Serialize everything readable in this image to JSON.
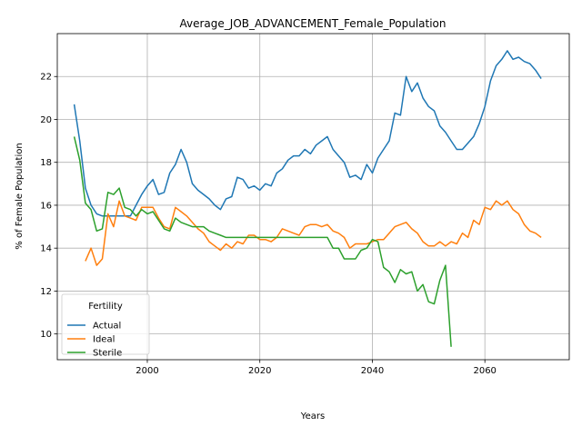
{
  "chart_data": {
    "type": "line",
    "title": "Average_JOB_ADVANCEMENT_Female_Population",
    "xlabel": "Years",
    "ylabel": "% of Female Population",
    "xlim": [
      1984,
      2075
    ],
    "ylim": [
      8.8,
      24.0
    ],
    "xticks": [
      2000,
      2020,
      2040,
      2060
    ],
    "yticks": [
      10,
      12,
      14,
      16,
      18,
      20,
      22
    ],
    "grid": true,
    "legend": {
      "title": "Fertility",
      "position": "lower-left",
      "entries": [
        "Actual",
        "Ideal",
        "Sterile"
      ]
    },
    "series": [
      {
        "name": "Actual",
        "color": "#1f77b4",
        "x": [
          1987,
          1988,
          1989,
          1990,
          1991,
          1992,
          1993,
          1994,
          1995,
          1996,
          1997,
          1998,
          1999,
          2000,
          2001,
          2002,
          2003,
          2004,
          2005,
          2006,
          2007,
          2008,
          2009,
          2010,
          2011,
          2012,
          2013,
          2014,
          2015,
          2016,
          2017,
          2018,
          2019,
          2020,
          2021,
          2022,
          2023,
          2024,
          2025,
          2026,
          2027,
          2028,
          2029,
          2030,
          2031,
          2032,
          2033,
          2034,
          2035,
          2036,
          2037,
          2038,
          2039,
          2040,
          2041,
          2042,
          2043,
          2044,
          2045,
          2046,
          2047,
          2048,
          2049,
          2050,
          2051,
          2052,
          2053,
          2054,
          2055,
          2056,
          2057,
          2058,
          2059,
          2060,
          2061,
          2062,
          2063,
          2064,
          2065,
          2066,
          2067,
          2068,
          2069,
          2070
        ],
        "values": [
          20.7,
          19.0,
          16.8,
          16.0,
          15.6,
          15.5,
          15.5,
          15.5,
          15.5,
          15.5,
          15.5,
          16.0,
          16.5,
          16.9,
          17.2,
          16.5,
          16.6,
          17.5,
          17.9,
          18.6,
          18.0,
          17.0,
          16.7,
          16.5,
          16.3,
          16.0,
          15.8,
          16.3,
          16.4,
          17.3,
          17.2,
          16.8,
          16.9,
          16.7,
          17.0,
          16.9,
          17.5,
          17.7,
          18.1,
          18.3,
          18.3,
          18.6,
          18.4,
          18.8,
          19.0,
          19.2,
          18.6,
          18.3,
          18.0,
          17.3,
          17.4,
          17.2,
          17.9,
          17.5,
          18.2,
          18.6,
          19.0,
          20.3,
          20.2,
          22.0,
          21.3,
          21.7,
          21.0,
          20.6,
          20.4,
          19.7,
          19.4,
          19.0,
          18.6,
          18.6,
          18.9,
          19.2,
          19.8,
          20.6,
          21.8,
          22.5,
          22.8,
          23.2,
          22.8,
          22.9,
          22.7,
          22.6,
          22.3,
          21.9
        ]
      },
      {
        "name": "Ideal",
        "color": "#ff7f0e",
        "x": [
          1989,
          1990,
          1991,
          1992,
          1993,
          1994,
          1995,
          1996,
          1997,
          1998,
          1999,
          2000,
          2001,
          2002,
          2003,
          2004,
          2005,
          2006,
          2007,
          2008,
          2009,
          2010,
          2011,
          2012,
          2013,
          2014,
          2015,
          2016,
          2017,
          2018,
          2019,
          2020,
          2021,
          2022,
          2023,
          2024,
          2025,
          2026,
          2027,
          2028,
          2029,
          2030,
          2031,
          2032,
          2033,
          2034,
          2035,
          2036,
          2037,
          2038,
          2039,
          2040,
          2041,
          2042,
          2043,
          2044,
          2045,
          2046,
          2047,
          2048,
          2049,
          2050,
          2051,
          2052,
          2053,
          2054,
          2055,
          2056,
          2057,
          2058,
          2059,
          2060,
          2061,
          2062,
          2063,
          2064,
          2065,
          2066,
          2067,
          2068,
          2069,
          2070
        ],
        "values": [
          13.4,
          14.0,
          13.2,
          13.5,
          15.6,
          15.0,
          16.2,
          15.5,
          15.4,
          15.3,
          15.9,
          15.9,
          15.9,
          15.4,
          15.0,
          14.9,
          15.9,
          15.7,
          15.5,
          15.2,
          14.9,
          14.7,
          14.3,
          14.1,
          13.9,
          14.2,
          14.0,
          14.3,
          14.2,
          14.6,
          14.6,
          14.4,
          14.4,
          14.3,
          14.5,
          14.9,
          14.8,
          14.7,
          14.6,
          15.0,
          15.1,
          15.1,
          15.0,
          15.1,
          14.8,
          14.7,
          14.5,
          14.0,
          14.2,
          14.2,
          14.2,
          14.3,
          14.4,
          14.4,
          14.7,
          15.0,
          15.1,
          15.2,
          14.9,
          14.7,
          14.3,
          14.1,
          14.1,
          14.3,
          14.1,
          14.3,
          14.2,
          14.7,
          14.5,
          15.3,
          15.1,
          15.9,
          15.8,
          16.2,
          16.0,
          16.2,
          15.8,
          15.6,
          15.1,
          14.8,
          14.7,
          14.5
        ]
      },
      {
        "name": "Sterile",
        "color": "#2ca02c",
        "x": [
          1987,
          1988,
          1989,
          1990,
          1991,
          1992,
          1993,
          1994,
          1995,
          1996,
          1997,
          1998,
          1999,
          2000,
          2001,
          2002,
          2003,
          2004,
          2005,
          2006,
          2007,
          2008,
          2009,
          2010,
          2011,
          2012,
          2013,
          2014,
          2015,
          2016,
          2017,
          2018,
          2019,
          2020,
          2021,
          2022,
          2023,
          2024,
          2025,
          2026,
          2027,
          2028,
          2029,
          2030,
          2031,
          2032,
          2033,
          2034,
          2035,
          2036,
          2037,
          2038,
          2039,
          2040,
          2041,
          2042,
          2043,
          2044,
          2045,
          2046,
          2047,
          2048,
          2049,
          2050,
          2051,
          2052,
          2053,
          2054
        ],
        "values": [
          19.2,
          18.1,
          16.1,
          15.8,
          14.8,
          14.9,
          16.6,
          16.5,
          16.8,
          15.9,
          15.8,
          15.5,
          15.8,
          15.6,
          15.7,
          15.3,
          14.9,
          14.8,
          15.4,
          15.2,
          15.1,
          15.0,
          15.0,
          15.0,
          14.8,
          14.7,
          14.6,
          14.5,
          14.5,
          14.5,
          14.5,
          14.5,
          14.5,
          14.5,
          14.5,
          14.5,
          14.5,
          14.5,
          14.5,
          14.5,
          14.5,
          14.5,
          14.5,
          14.5,
          14.5,
          14.5,
          14.0,
          14.0,
          13.5,
          13.5,
          13.5,
          13.9,
          14.0,
          14.4,
          14.3,
          13.1,
          12.9,
          12.4,
          13.0,
          12.8,
          12.9,
          12.0,
          12.3,
          11.5,
          11.4,
          12.5,
          13.2,
          9.4
        ]
      }
    ]
  }
}
